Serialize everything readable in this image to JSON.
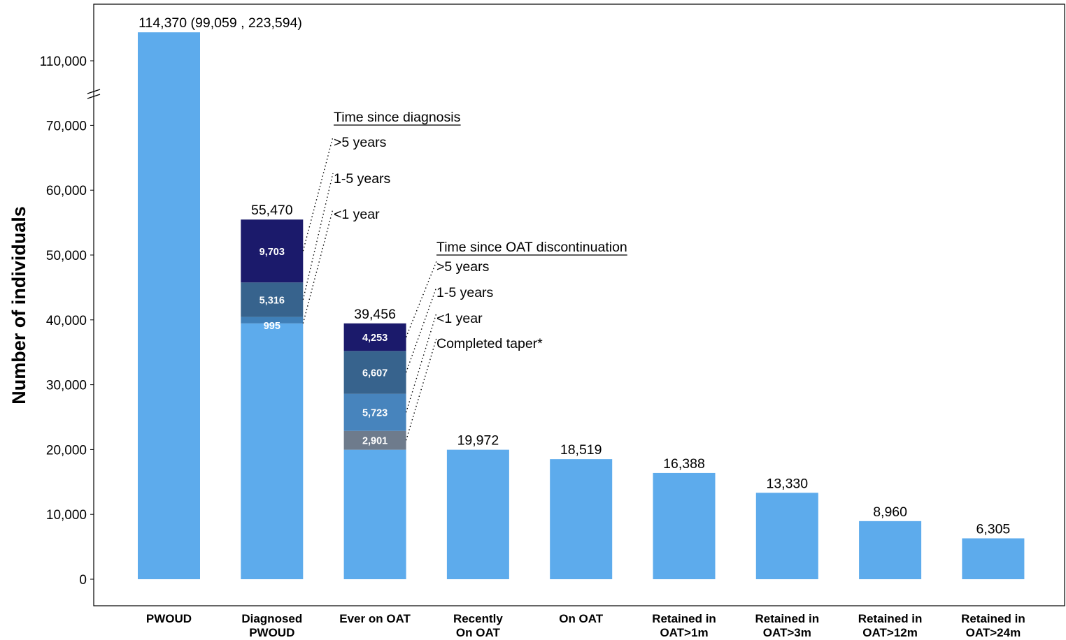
{
  "chart_data": {
    "type": "bar",
    "ylabel": "Number of individuals",
    "y_axis_break": true,
    "y_ticks_lower": [
      "0",
      "10,000",
      "20,000",
      "30,000",
      "40,000",
      "50,000",
      "60,000",
      "70,000"
    ],
    "y_ticks_upper": [
      "110,000"
    ],
    "grid": false,
    "categories": [
      [
        "PWOUD"
      ],
      [
        "Diagnosed",
        "PWOUD"
      ],
      [
        "Ever on OAT"
      ],
      [
        "Recently",
        "On OAT"
      ],
      [
        "On OAT"
      ],
      [
        "Retained in",
        "OAT>1m"
      ],
      [
        "Retained in",
        "OAT>3m"
      ],
      [
        "Retained in",
        "OAT>12m"
      ],
      [
        "Retained in",
        "OAT>24m"
      ]
    ],
    "values": [
      114370,
      55470,
      39456,
      19972,
      18519,
      16388,
      13330,
      8960,
      6305
    ],
    "value_labels": [
      "114,370 (99,059 , 223,594)",
      "55,470",
      "39,456",
      "19,972",
      "18,519",
      "16,388",
      "13,330",
      "8,960",
      "6,305"
    ],
    "base_color": "#5DABEC",
    "stacks": [
      {
        "bar_index": 1,
        "base_value": 39456,
        "title": "Time since diagnosis",
        "segments": [
          {
            "name": "<1 year",
            "value": 995,
            "label": "995",
            "color": "#3F7FB8"
          },
          {
            "name": "1-5 years",
            "value": 5316,
            "label": "5,316",
            "color": "#37638D"
          },
          {
            "name": ">5 years",
            "value": 9703,
            "label": "9,703",
            "color": "#1B1A6B"
          }
        ]
      },
      {
        "bar_index": 2,
        "base_value": 19972,
        "title": "Time since OAT discontinuation",
        "segments": [
          {
            "name": "Completed taper*",
            "value": 2901,
            "label": "2,901",
            "color": "#6E7B8C"
          },
          {
            "name": "<1 year",
            "value": 5723,
            "label": "5,723",
            "color": "#4784BD"
          },
          {
            "name": "1-5 years",
            "value": 6607,
            "label": "6,607",
            "color": "#37638D"
          },
          {
            "name": ">5 years",
            "value": 4253,
            "label": "4,253",
            "color": "#1B1A6B"
          }
        ]
      }
    ]
  }
}
